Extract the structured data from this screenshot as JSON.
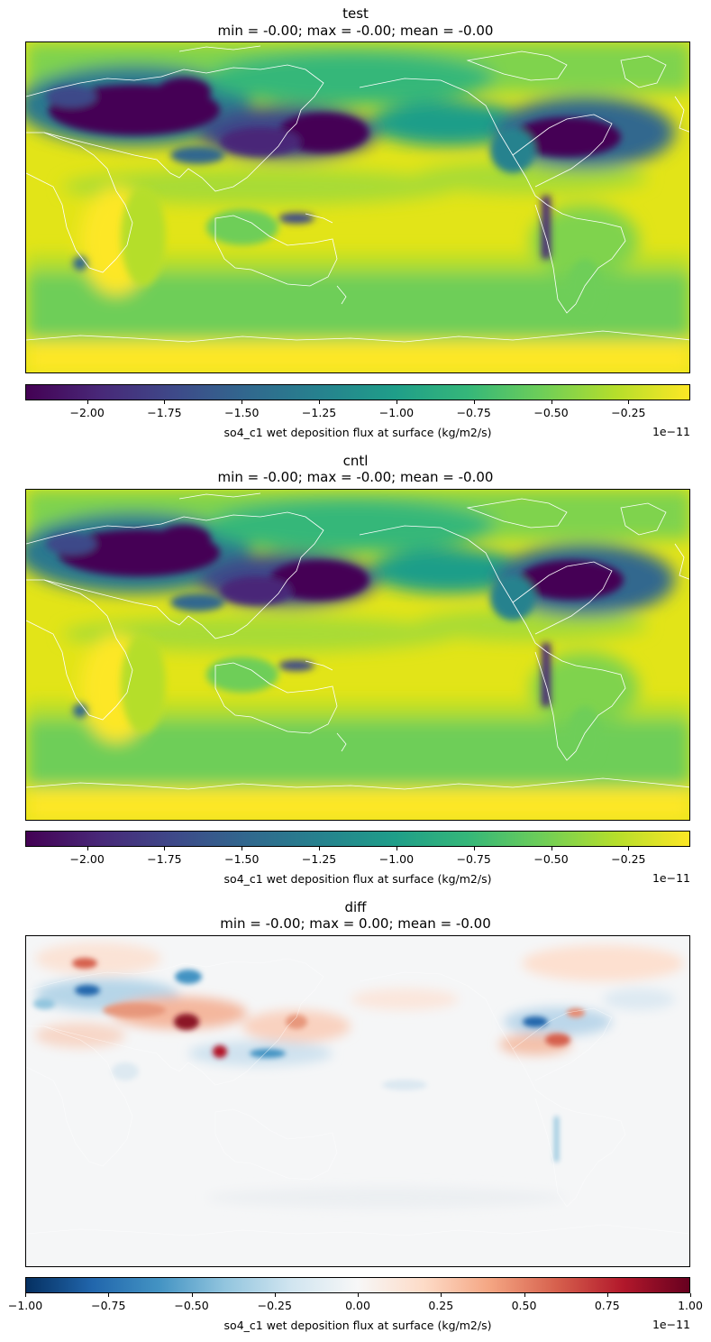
{
  "panels": [
    {
      "name": "test",
      "stats": "min = -0.00; max = -0.00; mean = -0.00",
      "cbar_label": "so4_c1 wet deposition flux at surface (kg/m2/s)",
      "offset": "1e−11",
      "ticks": [
        "−2.00",
        "−1.75",
        "−1.50",
        "−1.25",
        "−1.00",
        "−0.75",
        "−0.50",
        "−0.25"
      ]
    },
    {
      "name": "cntl",
      "stats": "min = -0.00; max = -0.00; mean = -0.00",
      "cbar_label": "so4_c1 wet deposition flux at surface (kg/m2/s)",
      "offset": "1e−11",
      "ticks": [
        "−2.00",
        "−1.75",
        "−1.50",
        "−1.25",
        "−1.00",
        "−0.75",
        "−0.50",
        "−0.25"
      ]
    },
    {
      "name": "diff",
      "stats": "min = -0.00; max = 0.00; mean = -0.00",
      "cbar_label": "so4_c1 wet deposition flux at surface (kg/m2/s)",
      "offset": "1e−11",
      "ticks": [
        "−1.00",
        "−0.75",
        "−0.50",
        "−0.25",
        "0.00",
        "0.25",
        "0.50",
        "0.75",
        "1.00"
      ]
    }
  ],
  "chart_data": [
    {
      "type": "heatmap",
      "title": "test",
      "subtitle": "min = -0.00; max = -0.00; mean = -0.00",
      "colorbar_label": "so4_c1 wet deposition flux at surface (kg/m2/s)",
      "colormap": "viridis",
      "value_range": [
        -2.2e-11,
        -5e-13
      ],
      "colorbar_ticks": [
        -2.0,
        -1.75,
        -1.5,
        -1.25,
        -1.0,
        -0.75,
        -0.5,
        -0.25
      ],
      "colorbar_scale": "1e-11"
    },
    {
      "type": "heatmap",
      "title": "cntl",
      "subtitle": "min = -0.00; max = -0.00; mean = -0.00",
      "colorbar_label": "so4_c1 wet deposition flux at surface (kg/m2/s)",
      "colormap": "viridis",
      "value_range": [
        -2.2e-11,
        -5e-13
      ],
      "colorbar_ticks": [
        -2.0,
        -1.75,
        -1.5,
        -1.25,
        -1.0,
        -0.75,
        -0.5,
        -0.25
      ],
      "colorbar_scale": "1e-11"
    },
    {
      "type": "heatmap",
      "title": "diff",
      "subtitle": "min = -0.00; max = 0.00; mean = -0.00",
      "colorbar_label": "so4_c1 wet deposition flux at surface (kg/m2/s)",
      "colormap": "RdBu_r",
      "value_range": [
        -1e-11,
        1e-11
      ],
      "colorbar_ticks": [
        -1.0,
        -0.75,
        -0.5,
        -0.25,
        0.0,
        0.25,
        0.5,
        0.75,
        1.0
      ],
      "colorbar_scale": "1e-11"
    }
  ],
  "colors": {
    "viridis": [
      "#440154",
      "#482878",
      "#3e4989",
      "#31688e",
      "#26828e",
      "#1f9e89",
      "#35b779",
      "#6ece58",
      "#b5de2b",
      "#fde725"
    ],
    "rdbu_r": [
      "#053061",
      "#2166ac",
      "#4393c3",
      "#92c5de",
      "#d1e5f0",
      "#f7f7f7",
      "#fddbc7",
      "#f4a582",
      "#d6604d",
      "#b2182b",
      "#67001f"
    ],
    "coastline": "#ffffff"
  }
}
